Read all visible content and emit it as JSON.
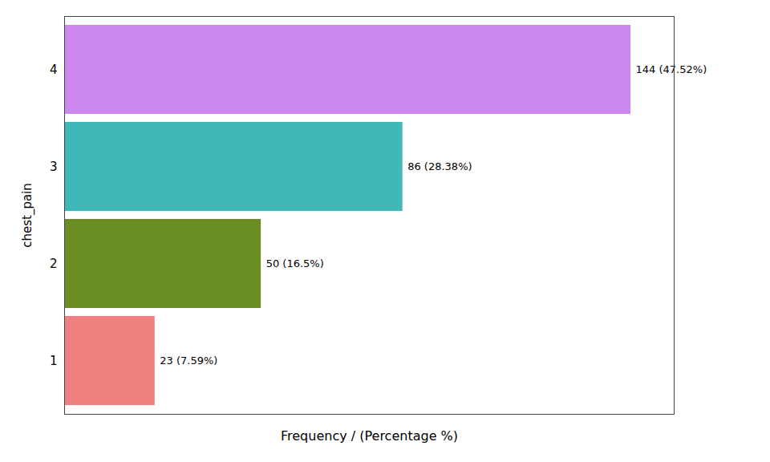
{
  "chart_data": {
    "type": "bar",
    "orientation": "horizontal",
    "categories": [
      "1",
      "2",
      "3",
      "4"
    ],
    "values": [
      23,
      50,
      86,
      144
    ],
    "value_labels": [
      "23 (7.59%)",
      "50 (16.5%)",
      "86 (28.38%)",
      "144 (47.52%)"
    ],
    "colors": [
      "#F08080",
      "#6B8E23",
      "#40B8B8",
      "#CC88EE"
    ],
    "xlabel": "Frequency / (Percentage %)",
    "ylabel": "chest_pain",
    "xlim": [
      0,
      155
    ],
    "xticks": [],
    "tick_labels": "y",
    "data_labels": true,
    "grid": false
  }
}
